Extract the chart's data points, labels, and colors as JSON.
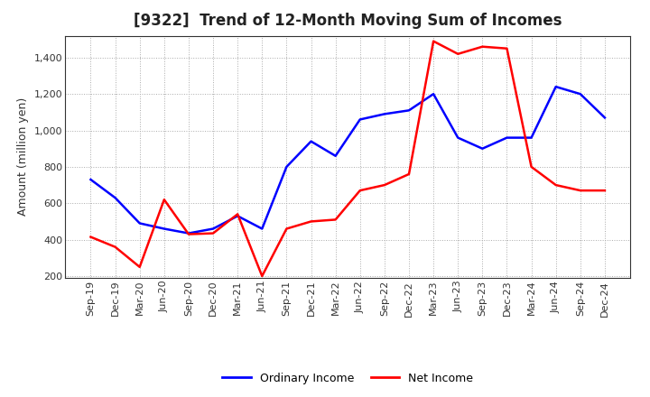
{
  "title": "[9322]  Trend of 12-Month Moving Sum of Incomes",
  "ylabel": "Amount (million yen)",
  "background_color": "#ffffff",
  "grid_color": "#aaaaaa",
  "x_labels": [
    "Sep-19",
    "Dec-19",
    "Mar-20",
    "Jun-20",
    "Sep-20",
    "Dec-20",
    "Mar-21",
    "Jun-21",
    "Sep-21",
    "Dec-21",
    "Mar-22",
    "Jun-22",
    "Sep-22",
    "Dec-22",
    "Mar-23",
    "Jun-23",
    "Sep-23",
    "Dec-23",
    "Mar-24",
    "Jun-24",
    "Sep-24",
    "Dec-24"
  ],
  "ordinary_income": [
    730,
    630,
    490,
    460,
    435,
    460,
    530,
    460,
    800,
    940,
    860,
    1060,
    1090,
    1110,
    1200,
    960,
    900,
    960,
    960,
    1240,
    1200,
    1070
  ],
  "net_income": [
    415,
    360,
    250,
    620,
    430,
    435,
    540,
    200,
    460,
    500,
    510,
    670,
    700,
    760,
    1490,
    1420,
    1460,
    1450,
    800,
    700,
    670,
    670
  ],
  "ordinary_color": "#0000ff",
  "net_color": "#ff0000",
  "ylim": [
    190,
    1520
  ],
  "yticks": [
    200,
    400,
    600,
    800,
    1000,
    1200,
    1400
  ],
  "line_width": 1.8,
  "title_fontsize": 12,
  "tick_fontsize": 8,
  "ylabel_fontsize": 9,
  "legend_fontsize": 9
}
